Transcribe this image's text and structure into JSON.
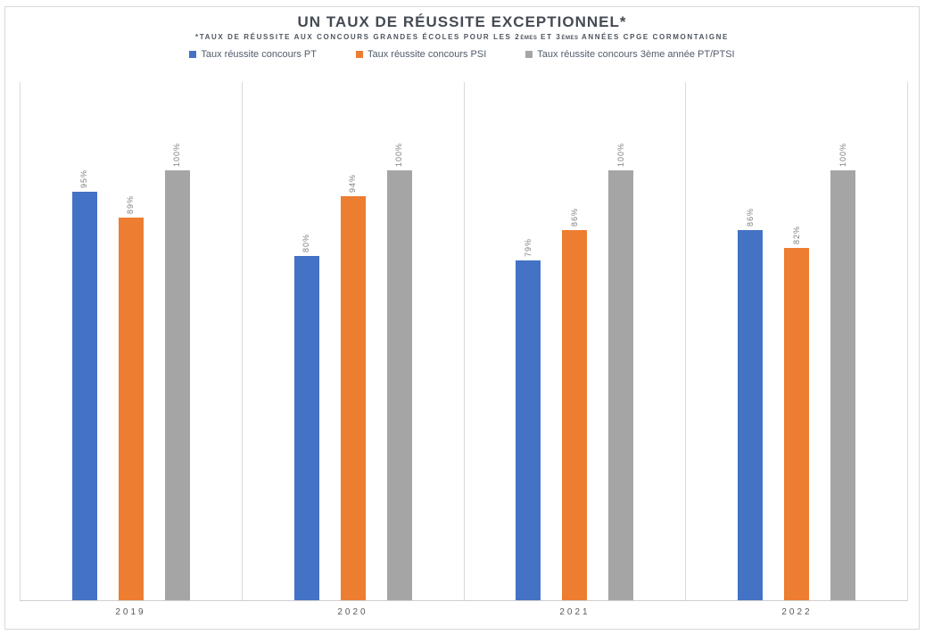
{
  "title": "UN TAUX DE RÉUSSITE EXCEPTIONNEL*",
  "subtitle": {
    "part1": "*TAUX DE RÉUSSITE AUX CONCOURS GRANDES ÉCOLES POUR LES 2",
    "small1": "ÈMES",
    "part2": " ET 3",
    "small2": "ÈMES",
    "part3": " ANNÉES CPGE CORMONTAIGNE"
  },
  "chart_data": {
    "type": "bar",
    "title": "UN TAUX DE RÉUSSITE EXCEPTIONNEL*",
    "subtitle": "*TAUX DE RÉUSSITE AUX CONCOURS GRANDES ÉCOLES POUR LES 2èmes ET 3èmes ANNÉES CPGE CORMONTAIGNE",
    "categories": [
      "2019",
      "2020",
      "2021",
      "2022"
    ],
    "series": [
      {
        "name": "Taux réussite concours PT",
        "color": "#4472C4",
        "values": [
          95,
          80,
          79,
          86
        ]
      },
      {
        "name": "Taux réussite concours PSI",
        "color": "#ED7D31",
        "values": [
          89,
          94,
          86,
          82
        ]
      },
      {
        "name": "Taux réussite concours 3ème année PT/PTSI",
        "color": "#A5A5A5",
        "values": [
          100,
          100,
          100,
          100
        ]
      }
    ],
    "value_suffix": "%",
    "data_labels": true,
    "data_label_rotation": 270,
    "xlabel": "",
    "ylabel": "",
    "ylim": [
      0,
      120
    ],
    "grid": false,
    "legend_position": "top"
  },
  "colors": {
    "frame_border": "#D9D9D9",
    "separator_line": "#D9D9D9",
    "axis_line": "#CFCFCF",
    "title_text": "#454B54",
    "subtitle_text": "#4D5560",
    "legend_text": "#515C6B",
    "value_label_text": "#7F7F7F",
    "category_label_text": "#595959"
  }
}
